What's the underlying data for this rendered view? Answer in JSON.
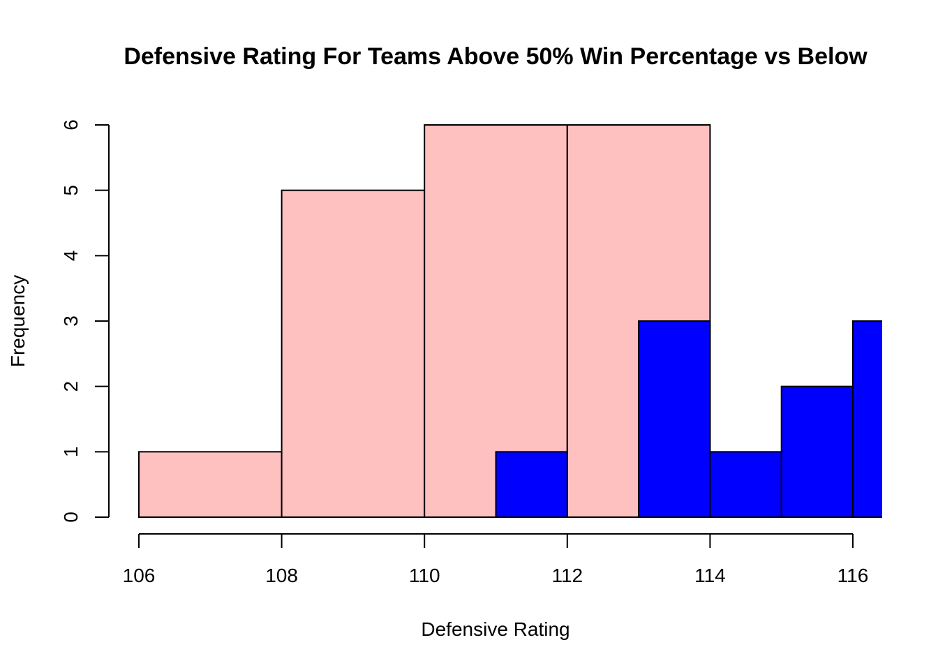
{
  "chart_data": {
    "type": "bar",
    "title": "Defensive Rating For Teams Above 50% Win Percentage vs Below",
    "xlabel": "Defensive Rating",
    "ylabel": "Frequency",
    "xlim": [
      106,
      116.4
    ],
    "ylim": [
      0,
      6
    ],
    "x_ticks": [
      106,
      108,
      110,
      112,
      114,
      116
    ],
    "y_ticks": [
      0,
      1,
      2,
      3,
      4,
      5,
      6
    ],
    "grid": false,
    "series": [
      {
        "color": "#ffc0c0",
        "bins": [
          {
            "start": 106,
            "end": 108,
            "count": 1
          },
          {
            "start": 108,
            "end": 110,
            "count": 5
          },
          {
            "start": 110,
            "end": 112,
            "count": 6
          },
          {
            "start": 112,
            "end": 114,
            "count": 6
          }
        ]
      },
      {
        "color": "#0000ff",
        "bins": [
          {
            "start": 111,
            "end": 112,
            "count": 1
          },
          {
            "start": 112,
            "end": 113,
            "count": 0
          },
          {
            "start": 113,
            "end": 114,
            "count": 3
          },
          {
            "start": 114,
            "end": 115,
            "count": 1
          },
          {
            "start": 115,
            "end": 116,
            "count": 2
          },
          {
            "start": 116,
            "end": 117,
            "count": 3
          }
        ]
      }
    ]
  }
}
